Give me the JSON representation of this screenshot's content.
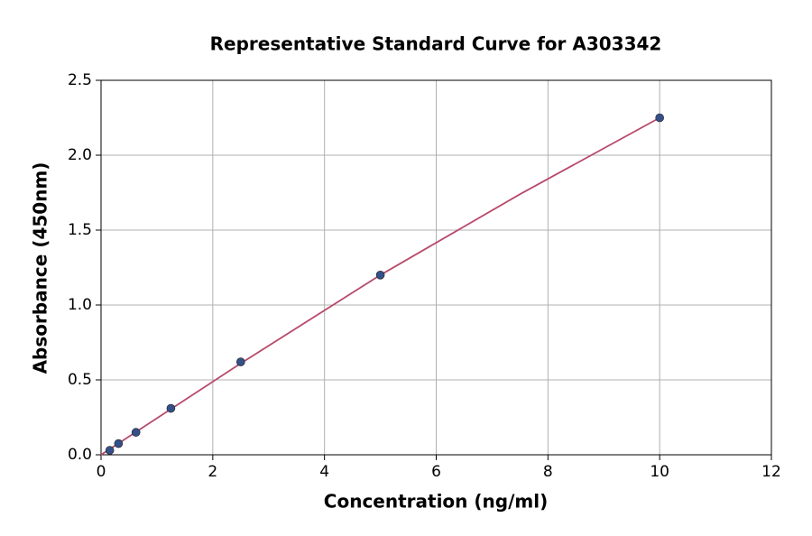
{
  "chart_data": {
    "type": "scatter",
    "title": "Representative Standard Curve for A303342",
    "x_label": "Concentration (ng/ml)",
    "y_label": "Absorbance (450nm)",
    "x": [
      0.156,
      0.3125,
      0.625,
      1.25,
      2.5,
      5,
      10
    ],
    "values": [
      0.03,
      0.075,
      0.15,
      0.31,
      0.62,
      1.2,
      2.25
    ],
    "color": "#34508a",
    "fit": {
      "color": "#b84a6b",
      "x": [
        0,
        2.5,
        5,
        7.5,
        10
      ],
      "values": [
        0,
        0.61,
        1.2,
        1.74,
        2.25
      ]
    },
    "xlim": [
      0,
      12
    ],
    "xticks": [
      0,
      2,
      4,
      6,
      8,
      10,
      12
    ],
    "ylim": [
      0,
      2.5
    ],
    "yticks": [
      {
        "value": 0,
        "label": "0.0"
      },
      0.5,
      {
        "value": 1,
        "label": "1.0"
      },
      1.5,
      {
        "value": 2,
        "label": "2.0"
      },
      2.5
    ],
    "grid": true
  }
}
